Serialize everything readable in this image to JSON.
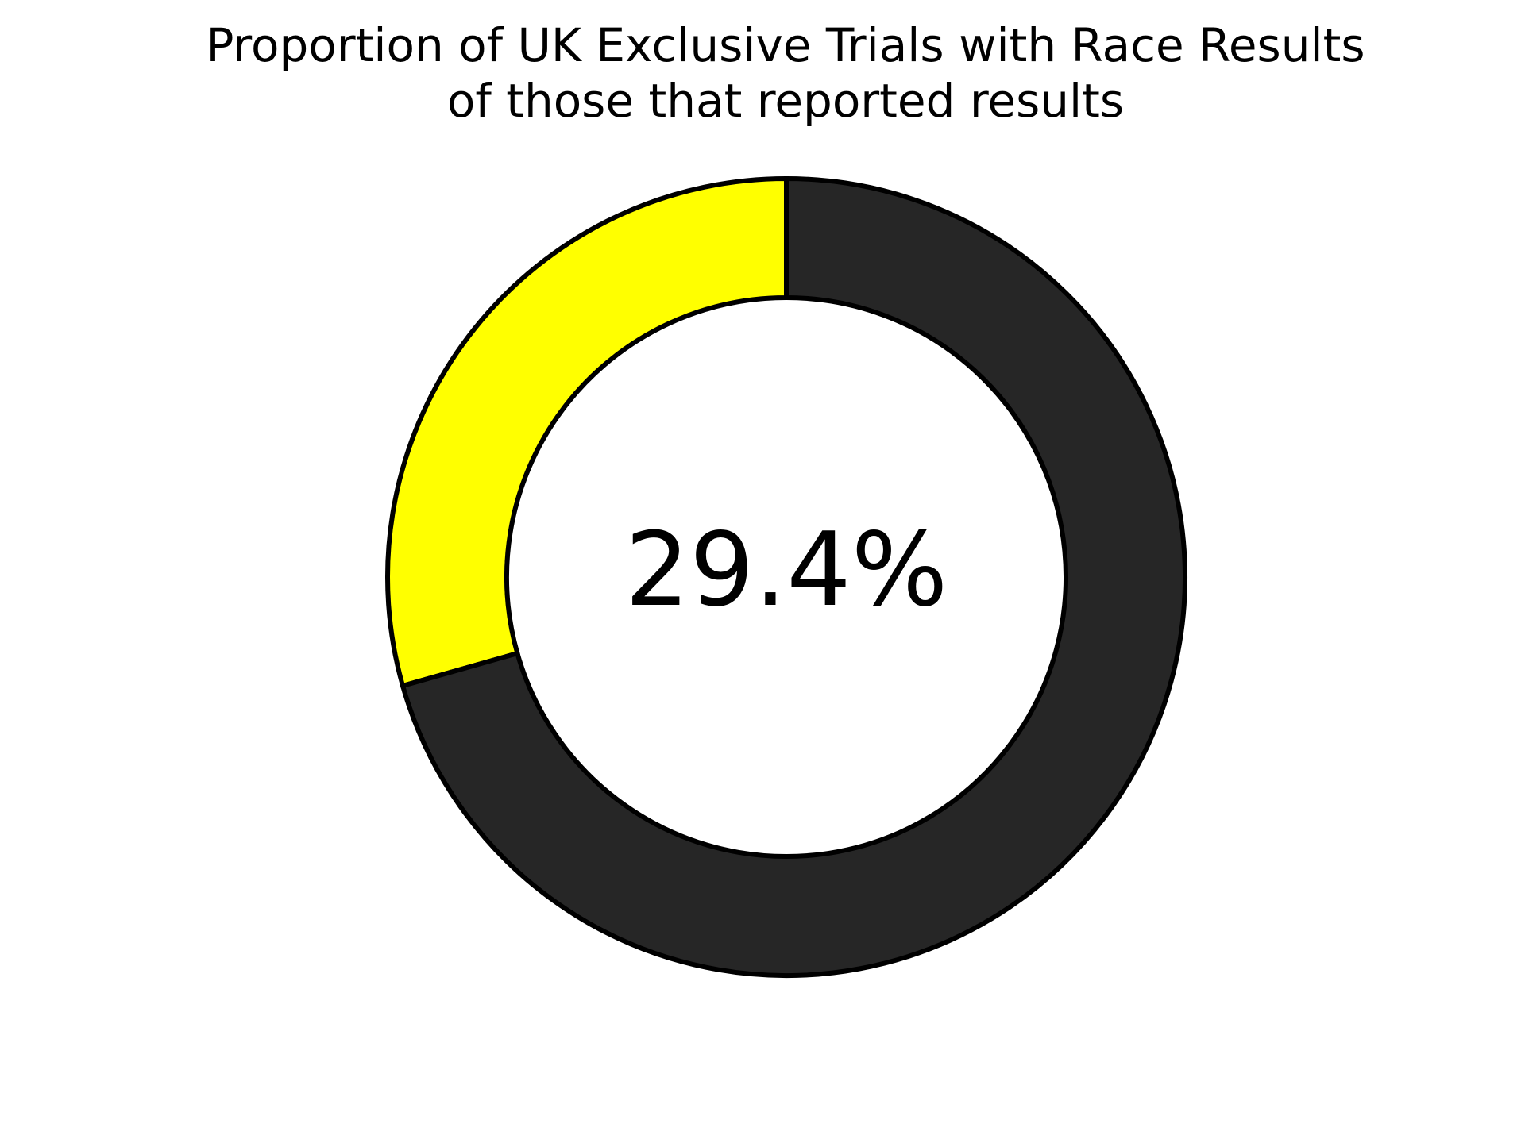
{
  "chart_data": {
    "type": "pie",
    "variant": "donut",
    "title_lines": [
      "Proportion of UK Exclusive Trials with Race Results",
      "of those that reported results"
    ],
    "center_label": "29.4%",
    "slices": [
      {
        "value": 29.4,
        "color": "#ffff00"
      },
      {
        "value": 70.6,
        "color": "#262626"
      }
    ],
    "start": "top",
    "direction": "counterclockwise",
    "edge_color": "#000000",
    "legend": "none"
  }
}
